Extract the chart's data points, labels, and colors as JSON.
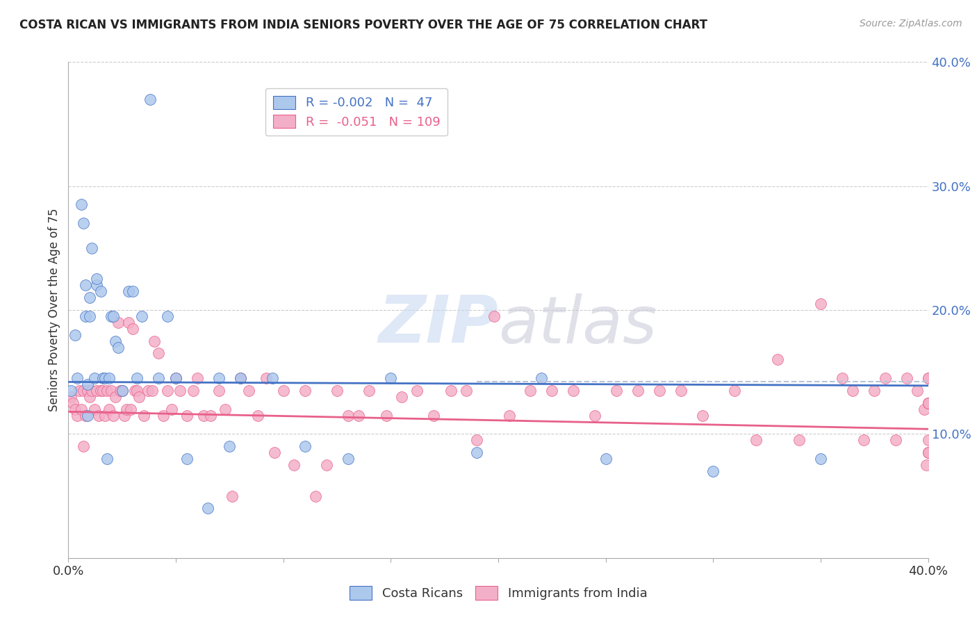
{
  "title": "COSTA RICAN VS IMMIGRANTS FROM INDIA SENIORS POVERTY OVER THE AGE OF 75 CORRELATION CHART",
  "source": "Source: ZipAtlas.com",
  "ylabel": "Seniors Poverty Over the Age of 75",
  "xlim": [
    0.0,
    0.4
  ],
  "ylim": [
    0.0,
    0.4
  ],
  "color_blue": "#adc8ed",
  "color_pink": "#f4afc8",
  "line_blue": "#4472c4",
  "line_pink": "#e8608a",
  "line_dash_color": "#b8c4d8",
  "watermark_color": "#dce8f5",
  "costa_ricans_x": [
    0.001,
    0.003,
    0.004,
    0.006,
    0.007,
    0.008,
    0.008,
    0.009,
    0.009,
    0.01,
    0.01,
    0.011,
    0.012,
    0.013,
    0.013,
    0.015,
    0.016,
    0.017,
    0.018,
    0.019,
    0.02,
    0.021,
    0.022,
    0.023,
    0.025,
    0.028,
    0.03,
    0.032,
    0.034,
    0.038,
    0.042,
    0.046,
    0.05,
    0.055,
    0.065,
    0.07,
    0.075,
    0.08,
    0.095,
    0.11,
    0.13,
    0.15,
    0.19,
    0.22,
    0.25,
    0.3,
    0.35
  ],
  "costa_ricans_y": [
    0.135,
    0.18,
    0.145,
    0.285,
    0.27,
    0.22,
    0.195,
    0.14,
    0.115,
    0.21,
    0.195,
    0.25,
    0.145,
    0.22,
    0.225,
    0.215,
    0.145,
    0.145,
    0.08,
    0.145,
    0.195,
    0.195,
    0.175,
    0.17,
    0.135,
    0.215,
    0.215,
    0.145,
    0.195,
    0.37,
    0.145,
    0.195,
    0.145,
    0.08,
    0.04,
    0.145,
    0.09,
    0.145,
    0.145,
    0.09,
    0.08,
    0.145,
    0.085,
    0.145,
    0.08,
    0.07,
    0.08
  ],
  "india_x": [
    0.001,
    0.002,
    0.003,
    0.004,
    0.005,
    0.006,
    0.007,
    0.007,
    0.008,
    0.009,
    0.01,
    0.011,
    0.012,
    0.013,
    0.014,
    0.015,
    0.016,
    0.017,
    0.018,
    0.019,
    0.02,
    0.021,
    0.022,
    0.023,
    0.024,
    0.025,
    0.026,
    0.027,
    0.028,
    0.029,
    0.03,
    0.031,
    0.032,
    0.033,
    0.035,
    0.037,
    0.039,
    0.04,
    0.042,
    0.044,
    0.046,
    0.048,
    0.05,
    0.052,
    0.055,
    0.058,
    0.06,
    0.063,
    0.066,
    0.07,
    0.073,
    0.076,
    0.08,
    0.084,
    0.088,
    0.092,
    0.096,
    0.1,
    0.105,
    0.11,
    0.115,
    0.12,
    0.125,
    0.13,
    0.135,
    0.14,
    0.148,
    0.155,
    0.162,
    0.17,
    0.178,
    0.185,
    0.19,
    0.198,
    0.205,
    0.215,
    0.225,
    0.235,
    0.245,
    0.255,
    0.265,
    0.275,
    0.285,
    0.295,
    0.31,
    0.32,
    0.33,
    0.34,
    0.35,
    0.36,
    0.365,
    0.37,
    0.375,
    0.38,
    0.385,
    0.39,
    0.395,
    0.398,
    0.399,
    0.4,
    0.4,
    0.4,
    0.4,
    0.4,
    0.4,
    0.4,
    0.4,
    0.4,
    0.4
  ],
  "india_y": [
    0.13,
    0.125,
    0.12,
    0.115,
    0.135,
    0.12,
    0.135,
    0.09,
    0.115,
    0.135,
    0.13,
    0.135,
    0.12,
    0.135,
    0.115,
    0.135,
    0.135,
    0.115,
    0.135,
    0.12,
    0.135,
    0.115,
    0.13,
    0.19,
    0.135,
    0.135,
    0.115,
    0.12,
    0.19,
    0.12,
    0.185,
    0.135,
    0.135,
    0.13,
    0.115,
    0.135,
    0.135,
    0.175,
    0.165,
    0.115,
    0.135,
    0.12,
    0.145,
    0.135,
    0.115,
    0.135,
    0.145,
    0.115,
    0.115,
    0.135,
    0.12,
    0.05,
    0.145,
    0.135,
    0.115,
    0.145,
    0.085,
    0.135,
    0.075,
    0.135,
    0.05,
    0.075,
    0.135,
    0.115,
    0.115,
    0.135,
    0.115,
    0.13,
    0.135,
    0.115,
    0.135,
    0.135,
    0.095,
    0.195,
    0.115,
    0.135,
    0.135,
    0.135,
    0.115,
    0.135,
    0.135,
    0.135,
    0.135,
    0.115,
    0.135,
    0.095,
    0.16,
    0.095,
    0.205,
    0.145,
    0.135,
    0.095,
    0.135,
    0.145,
    0.095,
    0.145,
    0.135,
    0.12,
    0.075,
    0.145,
    0.125,
    0.095,
    0.145,
    0.125,
    0.085,
    0.125,
    0.085,
    0.125,
    0.085
  ],
  "blue_line_x0": 0.0,
  "blue_line_x1": 0.4,
  "blue_line_y0": 0.142,
  "blue_line_y1": 0.139,
  "pink_line_x0": 0.0,
  "pink_line_x1": 0.4,
  "pink_line_y0": 0.118,
  "pink_line_y1": 0.104,
  "dash_line_x0": 0.19,
  "dash_line_x1": 0.4,
  "dash_line_y": 0.142
}
